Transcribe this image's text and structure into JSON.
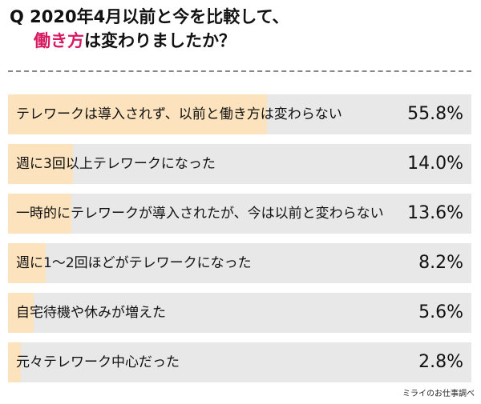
{
  "title": {
    "line1": "Q 2020年4月以前と今を比較して、",
    "accent": "働き方",
    "line2_rest": "は変わりましたか？"
  },
  "chart_data": {
    "type": "bar",
    "orientation": "horizontal",
    "title": "Q 2020年4月以前と今を比較して、働き方は変わりましたか？",
    "unit": "%",
    "xlim": [
      0,
      100
    ],
    "categories": [
      "テレワークは導入されず、以前と働き方は変わらない",
      "週に3回以上テレワークになった",
      "一時的にテレワークが導入されたが、今は以前と変わらない",
      "週に1〜2回ほどがテレワークになった",
      "自宅待機や休みが増えた",
      "元々テレワーク中心だった"
    ],
    "values": [
      55.8,
      14.0,
      13.6,
      8.2,
      5.6,
      2.8
    ],
    "value_labels": [
      "55.8%",
      "14.0%",
      "13.6%",
      "8.2%",
      "5.6%",
      "2.8%"
    ]
  },
  "source": "ミライのお仕事調べ",
  "colors": {
    "accent": "#d81b60",
    "bar_fill": "#fde3bd",
    "track": "#e8e8e8"
  }
}
